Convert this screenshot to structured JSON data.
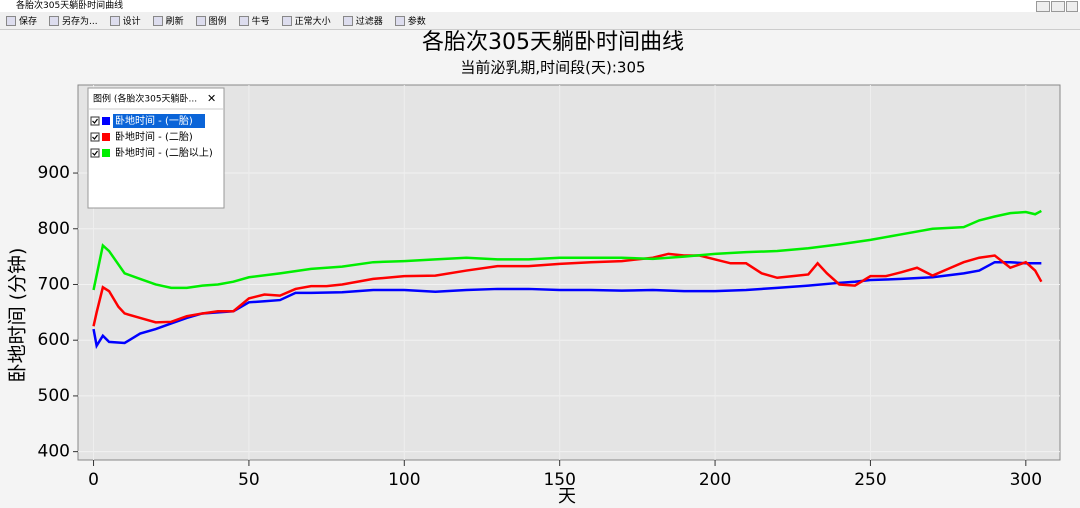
{
  "window_title": "各胎次305天躺卧时间曲线",
  "toolbar": [
    "保存",
    "另存为...",
    "设计",
    "刷新",
    "图例",
    "牛号",
    "正常大小",
    "过滤器",
    "参数"
  ],
  "chart_data": {
    "type": "line",
    "title": "各胎次305天躺卧时间曲线",
    "subtitle": "当前泌乳期,时间段(天):305",
    "x_label": "天",
    "y_label": "卧地时间 (分钟)",
    "legend_title": "图例 (各胎次305天躺卧...",
    "xlim": [
      -5,
      311
    ],
    "xticks": [
      0,
      50,
      100,
      150,
      200,
      250,
      300
    ],
    "ylim": [
      385,
      1058
    ],
    "yticks": [
      400,
      500,
      600,
      700,
      800,
      900
    ],
    "grid": true,
    "series": [
      {
        "name": "卧地时间 - (一胎)",
        "color": "#0000ff",
        "x": [
          0,
          1,
          3,
          5,
          10,
          15,
          20,
          25,
          30,
          35,
          40,
          45,
          50,
          55,
          60,
          65,
          70,
          80,
          90,
          100,
          110,
          120,
          130,
          140,
          150,
          160,
          170,
          180,
          190,
          200,
          210,
          220,
          230,
          240,
          245,
          250,
          260,
          270,
          280,
          285,
          290,
          295,
          300,
          305
        ],
        "values": [
          620,
          590,
          608,
          597,
          595,
          612,
          620,
          630,
          640,
          648,
          650,
          652,
          668,
          670,
          672,
          685,
          685,
          686,
          690,
          690,
          687,
          690,
          692,
          692,
          690,
          690,
          689,
          690,
          688,
          688,
          690,
          694,
          698,
          703,
          705,
          708,
          710,
          713,
          720,
          725,
          740,
          740,
          738,
          738
        ]
      },
      {
        "name": "卧地时间 - (二胎)",
        "color": "#ff0000",
        "x": [
          0,
          1,
          3,
          5,
          8,
          10,
          15,
          20,
          25,
          30,
          35,
          40,
          45,
          50,
          55,
          60,
          65,
          70,
          75,
          80,
          90,
          100,
          110,
          120,
          130,
          140,
          150,
          160,
          170,
          180,
          185,
          190,
          195,
          200,
          205,
          210,
          215,
          220,
          225,
          230,
          233,
          236,
          240,
          245,
          250,
          255,
          260,
          265,
          270,
          275,
          280,
          285,
          290,
          295,
          300,
          303,
          305
        ],
        "values": [
          625,
          650,
          695,
          688,
          660,
          648,
          640,
          632,
          633,
          643,
          648,
          652,
          652,
          675,
          682,
          680,
          692,
          697,
          697,
          700,
          710,
          715,
          716,
          725,
          733,
          733,
          737,
          740,
          742,
          748,
          755,
          752,
          752,
          745,
          738,
          738,
          720,
          712,
          715,
          718,
          738,
          720,
          700,
          698,
          715,
          715,
          722,
          730,
          716,
          728,
          740,
          748,
          752,
          730,
          740,
          725,
          705
        ]
      },
      {
        "name": "卧地时间 - (二胎以上)",
        "color": "#00ee00",
        "x": [
          0,
          3,
          5,
          10,
          15,
          20,
          25,
          30,
          35,
          40,
          45,
          50,
          60,
          70,
          80,
          90,
          100,
          110,
          120,
          130,
          140,
          150,
          160,
          170,
          180,
          190,
          200,
          210,
          220,
          230,
          240,
          250,
          260,
          270,
          280,
          285,
          290,
          295,
          300,
          303,
          305
        ],
        "values": [
          690,
          770,
          760,
          720,
          710,
          700,
          694,
          694,
          698,
          700,
          705,
          713,
          720,
          728,
          732,
          740,
          742,
          745,
          748,
          745,
          745,
          748,
          748,
          748,
          746,
          750,
          755,
          758,
          760,
          765,
          772,
          780,
          790,
          800,
          803,
          815,
          822,
          828,
          830,
          826,
          832
        ]
      }
    ]
  }
}
